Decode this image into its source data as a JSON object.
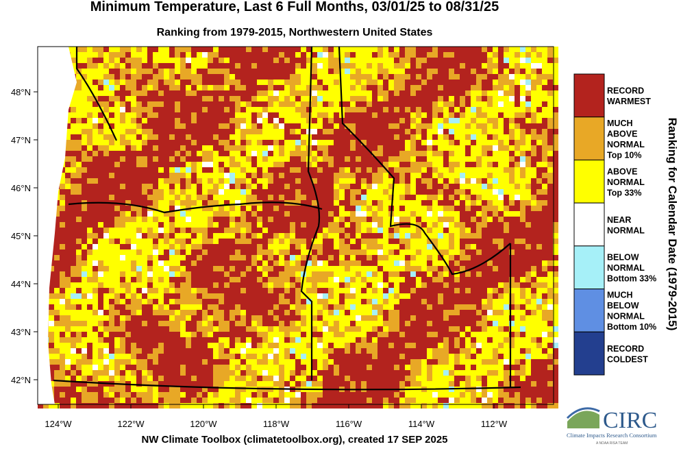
{
  "title": "Minimum Temperature, Last 6 Full Months, 03/01/25 to 08/31/25",
  "subtitle": "Ranking from 1979-2015, Northwestern United States",
  "map": {
    "lat_labels": [
      "48°N",
      "47°N",
      "46°N",
      "45°N",
      "44°N",
      "43°N",
      "42°N"
    ],
    "lon_labels": [
      "124°W",
      "122°W",
      "120°W",
      "118°W",
      "116°W",
      "114°W",
      "112°W"
    ]
  },
  "legend": {
    "title": "Ranking for Calendar Date (1979-2015)",
    "items": [
      {
        "lines": [
          "RECORD",
          "WARMEST"
        ],
        "color": "#b3231e"
      },
      {
        "lines": [
          "MUCH",
          "ABOVE",
          "NORMAL",
          "Top 10%"
        ],
        "color": "#e8a826"
      },
      {
        "lines": [
          "ABOVE",
          "NORMAL",
          "Top 33%"
        ],
        "color": "#ffff00"
      },
      {
        "lines": [
          "NEAR",
          "NORMAL"
        ],
        "color": "#ffffff"
      },
      {
        "lines": [
          "BELOW",
          "NORMAL",
          "Bottom 33%"
        ],
        "color": "#a6f0f8"
      },
      {
        "lines": [
          "MUCH",
          "BELOW",
          "NORMAL",
          "Bottom 10%"
        ],
        "color": "#5f8fe3"
      },
      {
        "lines": [
          "RECORD",
          "COLDEST"
        ],
        "color": "#233f8f"
      }
    ]
  },
  "credit": "NW Climate Toolbox (climatetoolbox.org), created 17 SEP 2025",
  "logo": {
    "name": "CIRC",
    "org": "Climate Impacts Research Consortium",
    "tag": "A NOAA RISA TEAM"
  }
}
